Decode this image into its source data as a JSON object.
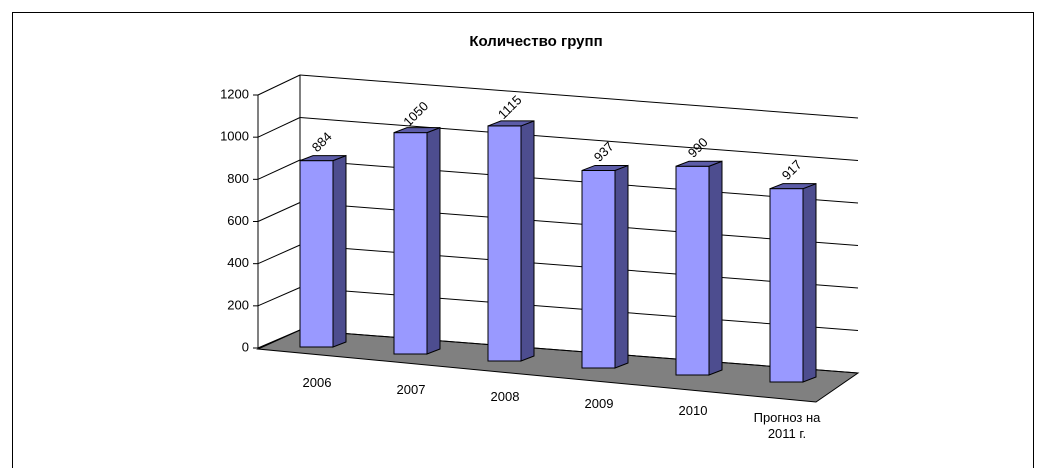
{
  "chart_data": {
    "type": "bar3d",
    "title": "Количество групп",
    "categories": [
      "2006",
      "2007",
      "2008",
      "2009",
      "2010",
      "Прогноз на 2011 г."
    ],
    "values": [
      884,
      1050,
      1115,
      937,
      990,
      917
    ],
    "color": "#9999ff",
    "ylim": [
      0,
      1200
    ],
    "yticks": [
      0,
      200,
      400,
      600,
      800,
      1000,
      1200
    ],
    "grid": true
  }
}
